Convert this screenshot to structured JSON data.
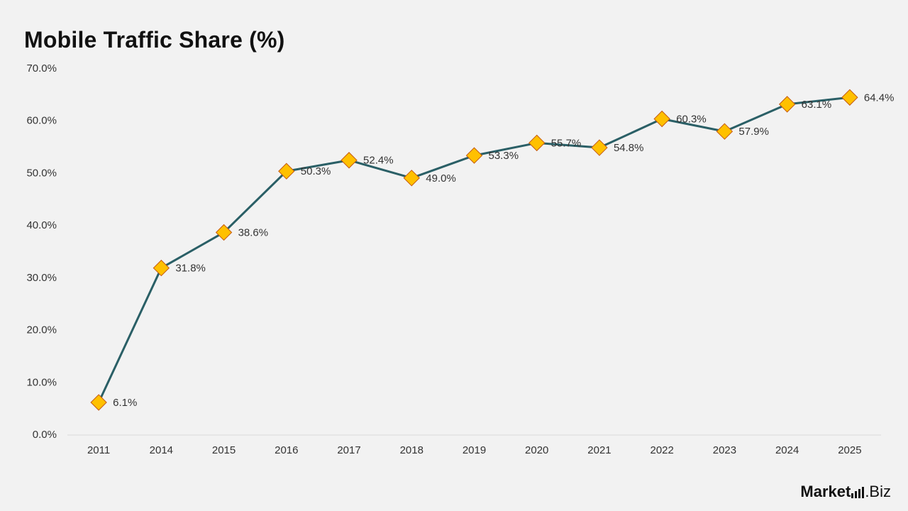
{
  "title": "Mobile Traffic Share (%)",
  "brand": {
    "part1": "Market",
    "part2": ".Biz"
  },
  "colors": {
    "background": "#f2f2f2",
    "line": "#2a5f66",
    "marker_fill": "#ffc000",
    "marker_stroke": "#c55a11",
    "axis": "#d9d9d9",
    "text": "#333333"
  },
  "chart_data": {
    "type": "line",
    "title": "Mobile Traffic Share (%)",
    "xlabel": "",
    "ylabel": "",
    "categories": [
      "2011",
      "2014",
      "2015",
      "2016",
      "2017",
      "2018",
      "2019",
      "2020",
      "2021",
      "2022",
      "2023",
      "2024",
      "2025"
    ],
    "series": [
      {
        "values": [
          6.1,
          31.8,
          38.6,
          50.3,
          52.4,
          49.0,
          53.3,
          55.7,
          54.8,
          60.3,
          57.9,
          63.1,
          64.4
        ],
        "labels": [
          "6.1%",
          "31.8%",
          "38.6%",
          "50.3%",
          "52.4%",
          "49.0%",
          "53.3%",
          "55.7%",
          "54.8%",
          "60.3%",
          "57.9%",
          "63.1%",
          "64.4%"
        ]
      }
    ],
    "ylim": [
      0,
      70
    ],
    "yticks": [
      0,
      10,
      20,
      30,
      40,
      50,
      60,
      70
    ],
    "ytick_labels": [
      "0.0%",
      "10.0%",
      "20.0%",
      "30.0%",
      "40.0%",
      "50.0%",
      "60.0%",
      "70.0%"
    ],
    "marker": "diamond",
    "grid": false,
    "legend": "none"
  }
}
